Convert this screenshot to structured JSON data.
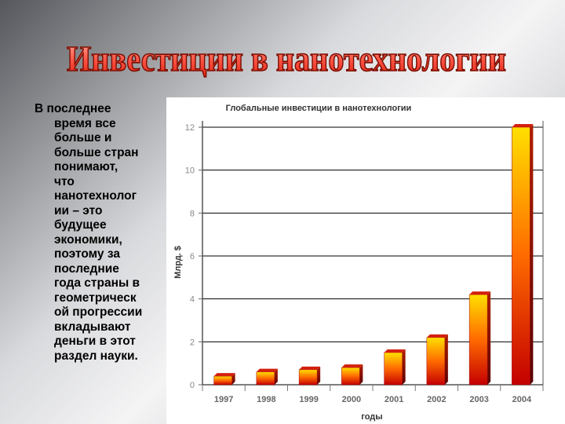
{
  "slide": {
    "title": "Инвестиции в нанотехнологии",
    "body_lines": [
      "В последнее",
      "время все",
      "больше и",
      "больше стран",
      "понимают,",
      "что",
      "нанотехнолог",
      "ии – это",
      "будущее",
      "экономики,",
      "поэтому за",
      "последние",
      "года страны в",
      "геометрическ",
      "ой прогрессии",
      "вкладывают",
      "деньги в этот",
      "раздел науки."
    ]
  },
  "chart_data": {
    "type": "bar",
    "title": "Глобальные инвестиции в нанотехнологии",
    "xlabel": "годы",
    "ylabel": "Млрд. $",
    "categories": [
      "1997",
      "1998",
      "1999",
      "2000",
      "2001",
      "2002",
      "2003",
      "2004"
    ],
    "values": [
      0.4,
      0.6,
      0.7,
      0.8,
      1.5,
      2.2,
      4.2,
      12
    ],
    "ylim": [
      0,
      12
    ],
    "yticks": [
      "0",
      "2",
      "4",
      "6",
      "8",
      "10",
      "12"
    ],
    "grid": true,
    "colors": {
      "bar_top": "#ffe000",
      "bar_mid": "#ff6a00",
      "bar_bottom": "#c40000",
      "bar_cap": "#d31f0f",
      "title_fill": "#ff5a4a",
      "title_stroke": "#7a0d00"
    }
  }
}
